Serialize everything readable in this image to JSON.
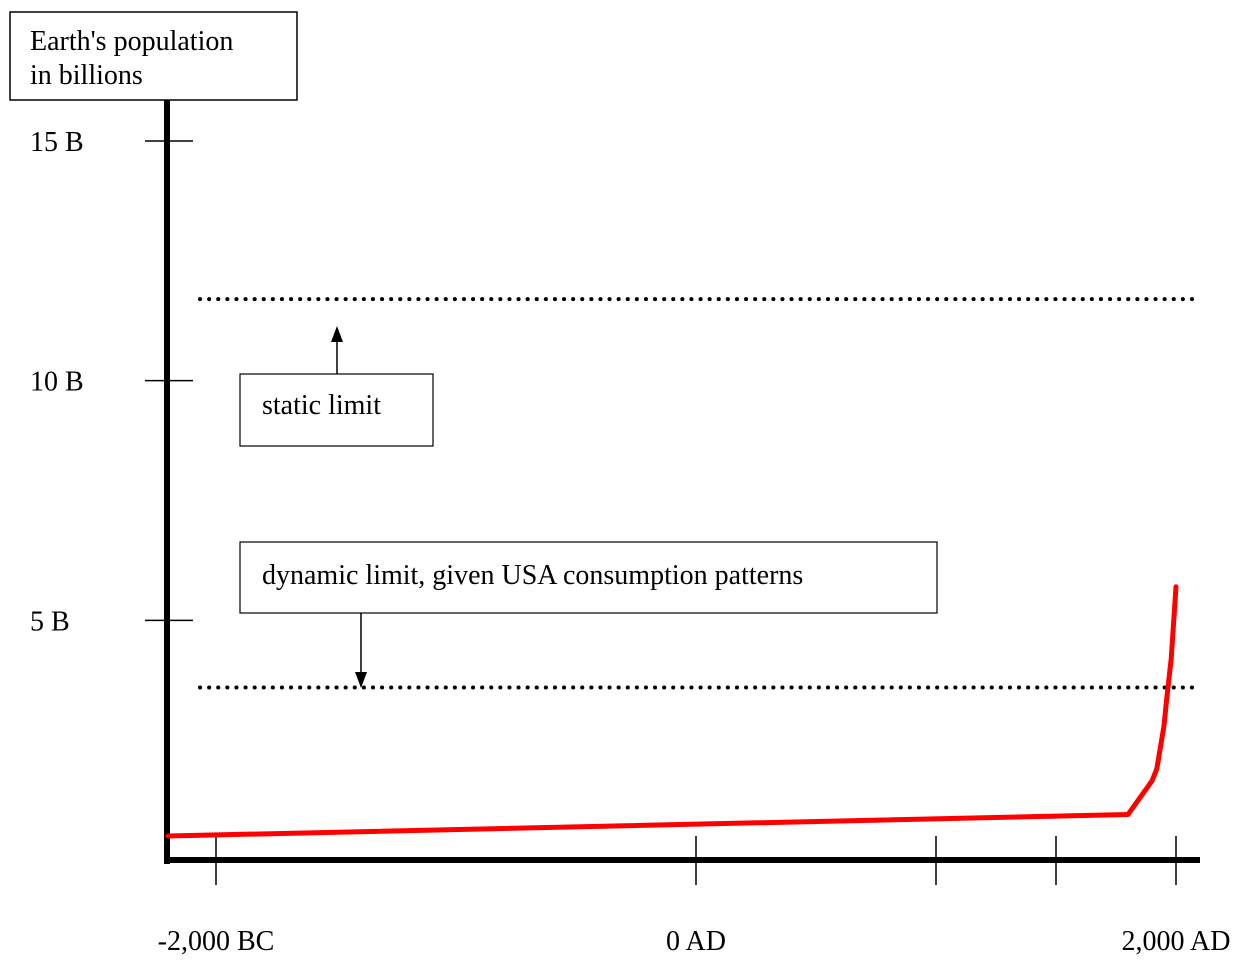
{
  "chart_data": {
    "type": "line",
    "ylabel_lines": [
      "Earth's population",
      "in billions"
    ],
    "ylim": [
      0,
      16
    ],
    "xlim": [
      -2200,
      2100
    ],
    "y_ticks": [
      {
        "value": 15,
        "label": "15 B"
      },
      {
        "value": 10,
        "label": "10 B"
      },
      {
        "value": 5,
        "label": "5 B"
      }
    ],
    "x_ticks": [
      {
        "value": -2000,
        "label": "-2,000 BC"
      },
      {
        "value": 0,
        "label": "0  AD"
      },
      {
        "value": 1000,
        "label": ""
      },
      {
        "value": 1500,
        "label": ""
      },
      {
        "value": 2000,
        "label": "2,000 AD"
      }
    ],
    "reference_lines": [
      {
        "value": 11.7,
        "style": "dotted"
      },
      {
        "value": 3.6,
        "style": "dotted"
      }
    ],
    "annotations": [
      {
        "text": "static limit",
        "arrow_to": 11.7
      },
      {
        "text": "dynamic limit, given USA consumption patterns",
        "arrow_to": 3.6
      }
    ],
    "series": [
      {
        "color": "#ff0000",
        "points": [
          [
            -2200,
            0.5
          ],
          [
            1800,
            0.95
          ],
          [
            1850,
            1.3
          ],
          [
            1900,
            1.65
          ],
          [
            1920,
            1.9
          ],
          [
            1930,
            2.2
          ],
          [
            1950,
            2.8
          ],
          [
            1960,
            3.3
          ],
          [
            1980,
            4.2
          ],
          [
            2000,
            5.7
          ]
        ]
      }
    ]
  }
}
